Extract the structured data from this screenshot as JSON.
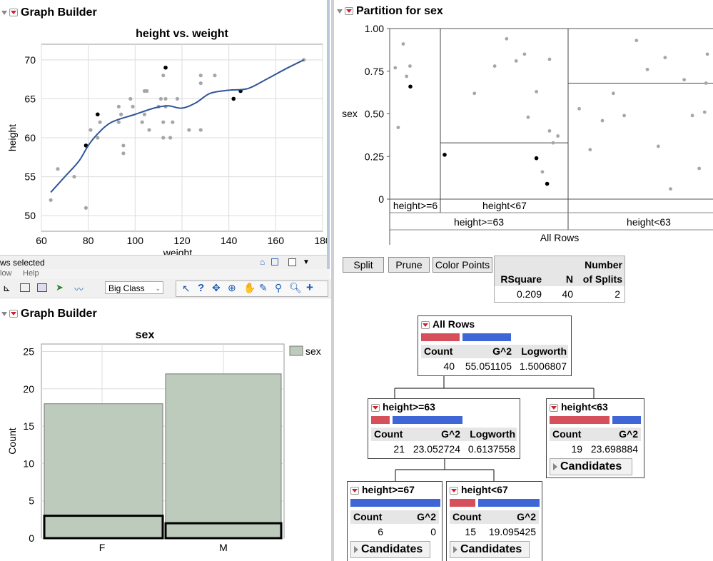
{
  "graph1": {
    "title": "Graph Builder",
    "chart_data": {
      "type": "scatter",
      "title": "height vs. weight",
      "xlabel": "weight",
      "ylabel": "height",
      "xlim": [
        60,
        180
      ],
      "ylim": [
        48,
        72
      ],
      "xticks": [
        "60",
        "80",
        "100",
        "120",
        "140",
        "160",
        "180"
      ],
      "yticks": [
        "50",
        "55",
        "60",
        "65",
        "70"
      ],
      "grid": true,
      "points_gray": [
        [
          64,
          52
        ],
        [
          67,
          56
        ],
        [
          74,
          55
        ],
        [
          79,
          51
        ],
        [
          81,
          61
        ],
        [
          84,
          60
        ],
        [
          85,
          62
        ],
        [
          93,
          62
        ],
        [
          93,
          64
        ],
        [
          94,
          63
        ],
        [
          95,
          59
        ],
        [
          95,
          58
        ],
        [
          98,
          65
        ],
        [
          99,
          64
        ],
        [
          103,
          62
        ],
        [
          104,
          63
        ],
        [
          104,
          66
        ],
        [
          105,
          66
        ],
        [
          106,
          61
        ],
        [
          110,
          64
        ],
        [
          111,
          65
        ],
        [
          112,
          60
        ],
        [
          112,
          68
        ],
        [
          112,
          62
        ],
        [
          113,
          64
        ],
        [
          113,
          65
        ],
        [
          115,
          60
        ],
        [
          116,
          62
        ],
        [
          118,
          65
        ],
        [
          123,
          61
        ],
        [
          128,
          61
        ],
        [
          128,
          68
        ],
        [
          128,
          67
        ],
        [
          134,
          68
        ],
        [
          172,
          70
        ]
      ],
      "points_black": [
        [
          79,
          59
        ],
        [
          84,
          63
        ],
        [
          113,
          69
        ],
        [
          142,
          65
        ],
        [
          145,
          66
        ]
      ],
      "smoother": [
        [
          64,
          53
        ],
        [
          70,
          55
        ],
        [
          76,
          57
        ],
        [
          80,
          59
        ],
        [
          84,
          60.5
        ],
        [
          90,
          62
        ],
        [
          100,
          63
        ],
        [
          108,
          63.8
        ],
        [
          114,
          64.1
        ],
        [
          120,
          63.8
        ],
        [
          126,
          64.5
        ],
        [
          132,
          65.7
        ],
        [
          140,
          66.1
        ],
        [
          148,
          66.3
        ],
        [
          156,
          67.5
        ],
        [
          164,
          68.8
        ],
        [
          172,
          70
        ]
      ]
    },
    "status_text": "ws selected"
  },
  "menu": {
    "items": [
      "low",
      "Help"
    ],
    "table_select": "Big Class"
  },
  "graph2": {
    "title": "Graph Builder",
    "chart_data": {
      "type": "bar",
      "title": "sex",
      "xlabel": "sex",
      "ylabel": "Count",
      "categories": [
        "F",
        "M"
      ],
      "values": [
        18,
        22
      ],
      "selected_values": [
        3,
        2
      ],
      "ylim": [
        0,
        26
      ],
      "yticks": [
        "0",
        "5",
        "10",
        "15",
        "20",
        "25"
      ],
      "legend": {
        "label": "sex",
        "color": "#bccbbb",
        "placement": "right"
      },
      "grid": true
    }
  },
  "partition": {
    "title": "Partition for sex",
    "ylabel": "sex",
    "yticks": [
      "1.00",
      "0.75",
      "0.50",
      "0.25",
      "0"
    ],
    "col_labels": [
      "height>=6",
      "height<67",
      "height<63"
    ],
    "level2_labels": [
      "height>=63",
      "height<63"
    ],
    "root_label": "All Rows",
    "split_lines": {
      "col1": 0.67,
      "col2": 0.33,
      "col3": 0.68
    },
    "points_gray": [
      [
        0.03,
        0.77
      ],
      [
        0.1,
        0.42
      ],
      [
        0.22,
        0.91
      ],
      [
        0.3,
        0.72
      ],
      [
        0.38,
        0.78
      ],
      [
        0.25,
        0.62
      ],
      [
        0.42,
        0.78
      ],
      [
        0.52,
        0.94
      ],
      [
        0.6,
        0.81
      ],
      [
        0.67,
        0.85
      ],
      [
        0.7,
        0.48
      ],
      [
        0.77,
        0.63
      ],
      [
        0.82,
        0.16
      ],
      [
        0.88,
        0.4
      ],
      [
        0.95,
        0.37
      ],
      [
        0.88,
        0.82
      ],
      [
        0.91,
        0.33
      ],
      [
        0.05,
        0.53
      ],
      [
        0.13,
        0.29
      ],
      [
        0.22,
        0.46
      ],
      [
        0.3,
        0.62
      ],
      [
        0.38,
        0.49
      ],
      [
        0.47,
        0.93
      ],
      [
        0.55,
        0.76
      ],
      [
        0.63,
        0.31
      ],
      [
        0.68,
        0.83
      ],
      [
        0.72,
        0.06
      ],
      [
        0.82,
        0.7
      ],
      [
        0.88,
        0.49
      ],
      [
        0.93,
        0.18
      ],
      [
        0.97,
        0.51
      ],
      [
        0.98,
        0.68
      ],
      [
        0.99,
        0.85
      ]
    ],
    "points_black": [
      [
        0.41,
        0.66
      ],
      [
        0.04,
        0.26
      ],
      [
        0.77,
        0.24
      ],
      [
        0.86,
        0.09
      ]
    ],
    "buttons": {
      "split": "Split",
      "prune": "Prune",
      "color_points": "Color Points"
    },
    "summary": {
      "rsquare_label": "RSquare",
      "n_label": "N",
      "splits_label_1": "Number",
      "splits_label_2": "of Splits",
      "rsquare": "0.209",
      "n": "40",
      "splits": "2"
    },
    "nodes": {
      "root": {
        "label": "All Rows",
        "count_h": "Count",
        "g2_h": "G^2",
        "lw_h": "Logworth",
        "count": "40",
        "g2": "55.051105",
        "lw": "1.5006807",
        "red_frac": 0.45
      },
      "ge63": {
        "label": "height>=63",
        "count_h": "Count",
        "g2_h": "G^2",
        "lw_h": "Logworth",
        "count": "21",
        "g2": "23.052724",
        "lw": "0.6137558",
        "red_frac": 0.14
      },
      "lt63": {
        "label": "height<63",
        "count_h": "Count",
        "g2_h": "G^2",
        "count": "19",
        "g2": "23.698884",
        "cand": "Candidates",
        "red_frac": 0.68
      },
      "ge67": {
        "label": "height>=67",
        "count_h": "Count",
        "g2_h": "G^2",
        "count": "6",
        "g2": "0",
        "cand": "Candidates",
        "red_frac": 0.0
      },
      "lt67": {
        "label": "height<67",
        "count_h": "Count",
        "g2_h": "G^2",
        "count": "15",
        "g2": "19.095425",
        "cand": "Candidates",
        "red_frac": 0.27
      }
    }
  }
}
